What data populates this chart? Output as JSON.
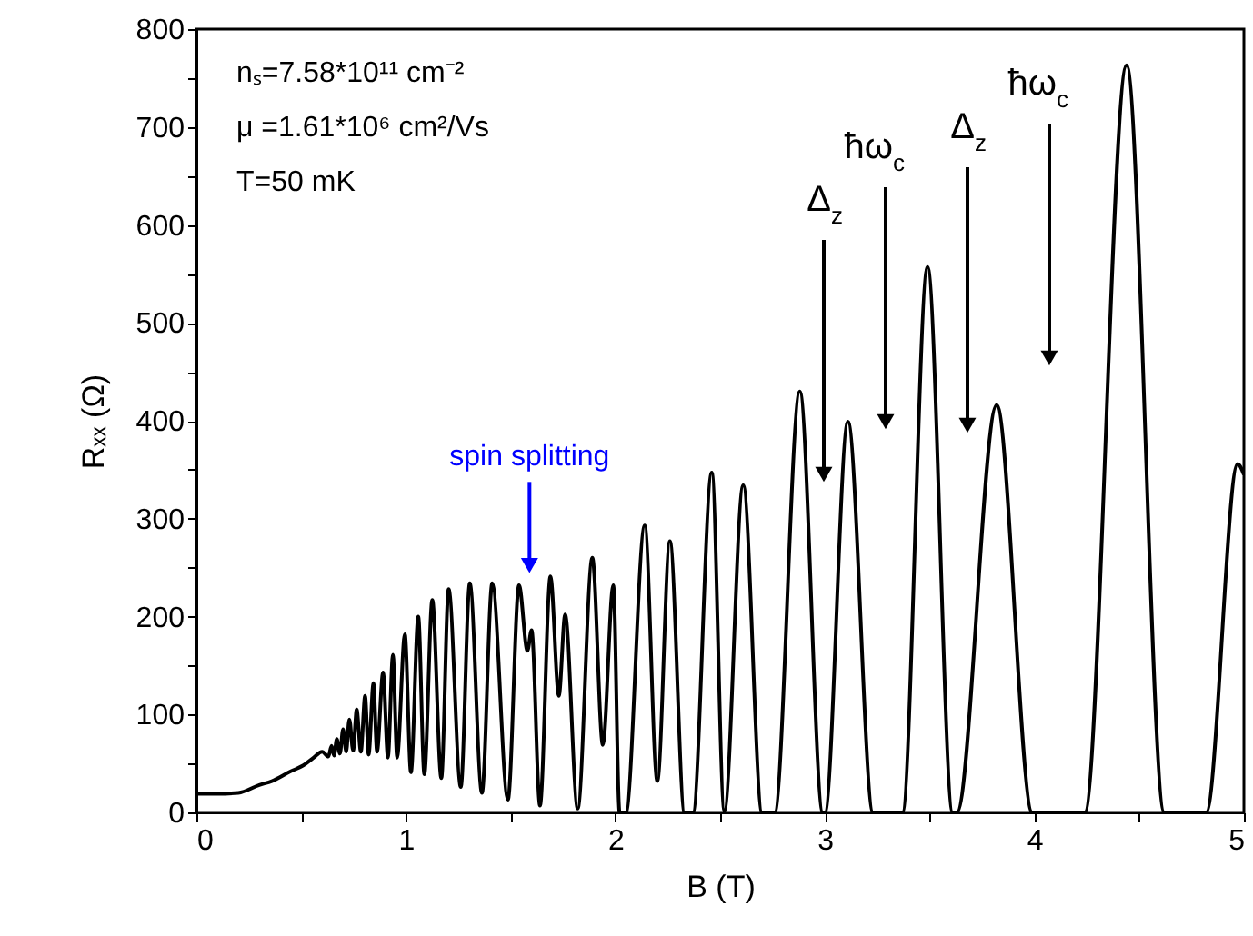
{
  "chart_data": {
    "type": "line",
    "xlabel": "B (T)",
    "ylabel": "Rₓₓ (Ω)",
    "x": [
      0,
      0.1,
      0.2,
      0.3,
      0.36,
      0.45,
      0.51,
      0.56,
      0.6,
      0.63,
      0.645,
      0.657,
      0.67,
      0.685,
      0.7,
      0.715,
      0.73,
      0.748,
      0.765,
      0.785,
      0.805,
      0.822,
      0.845,
      0.862,
      0.891,
      0.914,
      0.938,
      0.958,
      0.995,
      1.024,
      1.059,
      1.088,
      1.126,
      1.169,
      1.204,
      1.262,
      1.305,
      1.363,
      1.412,
      1.487,
      1.54,
      1.58,
      1.6,
      1.64,
      1.69,
      1.73,
      1.76,
      1.82,
      1.89,
      1.94,
      1.99,
      2.02,
      2.05,
      2.14,
      2.2,
      2.26,
      2.33,
      2.37,
      2.46,
      2.52,
      2.61,
      2.7,
      2.76,
      2.88,
      2.99,
      3.0,
      3.11,
      3.23,
      3.37,
      3.49,
      3.61,
      3.63,
      3.82,
      3.99,
      4.24,
      4.44,
      4.62,
      4.82,
      4.97,
      5.0
    ],
    "series": [
      {
        "color": "#000000",
        "values": [
          19,
          19,
          20,
          28,
          32,
          42,
          48,
          56,
          62,
          57,
          68,
          58,
          75,
          60,
          85,
          62,
          95,
          63,
          105,
          62,
          119,
          59,
          132,
          62,
          143,
          56,
          161,
          56,
          182,
          41,
          200,
          39,
          217,
          35,
          228,
          26,
          234,
          20,
          234,
          13,
          232,
          165,
          186,
          7,
          241,
          119,
          202,
          4,
          260,
          69,
          232,
          0,
          0,
          293,
          32,
          277,
          0,
          0,
          347,
          2,
          334,
          0,
          0,
          430,
          0,
          0,
          399,
          0,
          0,
          557,
          0,
          0,
          416,
          0,
          0,
          763,
          0,
          0,
          356,
          345
        ]
      }
    ],
    "xlim": [
      0,
      5
    ],
    "ylim": [
      0,
      800
    ],
    "xticks": [
      0,
      {
        "value": 0.5,
        "label": null
      },
      1,
      {
        "value": 1.5,
        "label": null
      },
      2,
      {
        "value": 2.5,
        "label": null
      },
      3,
      {
        "value": 3.5,
        "label": null
      },
      4,
      {
        "value": 4.5,
        "label": null
      },
      5
    ],
    "yticks": [
      0,
      {
        "value": 50,
        "label": null
      },
      100,
      {
        "value": 150,
        "label": null
      },
      200,
      {
        "value": 250,
        "label": null
      },
      300,
      {
        "value": 350,
        "label": null
      },
      400,
      {
        "value": 450,
        "label": null
      },
      500,
      {
        "value": 550,
        "label": null
      },
      600,
      {
        "value": 650,
        "label": null
      },
      700,
      {
        "value": 750,
        "label": null
      },
      800
    ],
    "grid": false,
    "marker": "none",
    "line_style": "solid",
    "annotations": [
      "nₛ=7.58*10¹¹ cm⁻²",
      "μ =1.61*10⁶ cm²/Vs",
      "T=50 mK",
      {
        "text": "spin splitting",
        "x": 1.59,
        "y": 241
      },
      "Δ$_{z}$",
      "ħω$_{c}$",
      "Δ$_{z}$",
      "ħω$_{c}$"
    ]
  }
}
